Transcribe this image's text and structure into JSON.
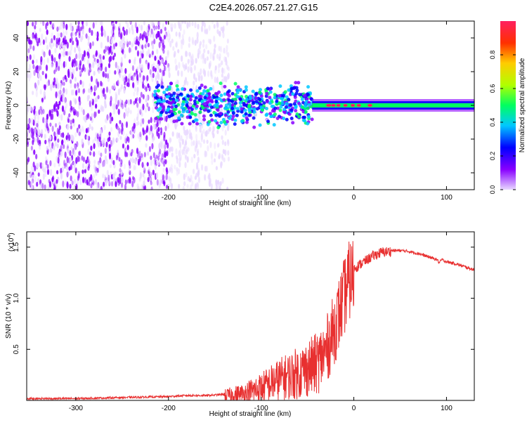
{
  "title": "C2E4.2026.057.21.27.G15",
  "chart_data": [
    {
      "type": "heatmap",
      "name": "spectrogram",
      "xlabel": "Height of straight line (km)",
      "ylabel": "Frequency (Hz)",
      "xlim": [
        -353,
        130
      ],
      "ylim": [
        -50,
        50
      ],
      "x_ticks": [
        -300,
        -200,
        -100,
        0,
        100
      ],
      "x_tick_labels": [
        "-300",
        "-200",
        "-100",
        "0",
        "100"
      ],
      "y_ticks": [
        -40,
        -20,
        0,
        20,
        40
      ],
      "y_tick_labels": [
        "-40",
        "-20",
        "0",
        "20",
        "40"
      ],
      "colorbar": {
        "label": "Normalized spectral amplitude",
        "range": [
          0.0,
          1.0
        ],
        "ticks": [
          0.0,
          0.2,
          0.4,
          0.6,
          0.8
        ],
        "tick_labels": [
          "0.0",
          "0.2",
          "0.4",
          "0.6",
          "0.8"
        ],
        "colors": [
          "#e8d8ff",
          "#8800ff",
          "#0000ff",
          "#00c8ff",
          "#00ff60",
          "#b0ff00",
          "#ffcc00",
          "#ff3000",
          "#ff2060"
        ]
      },
      "regions": [
        {
          "description_key": "noise",
          "x_range": [
            -353,
            -200
          ],
          "freq_range": [
            -50,
            50
          ],
          "amplitude": 0.1
        },
        {
          "description_key": "noise_sparse",
          "x_range": [
            -200,
            -135
          ],
          "freq_range": [
            -50,
            50
          ],
          "amplitude": 0.05
        },
        {
          "description_key": "band",
          "x_range": [
            -215,
            -45
          ],
          "freq_range": [
            -15,
            15
          ],
          "amplitude": 0.25
        },
        {
          "description_key": "signal_line",
          "x_range": [
            -45,
            130
          ],
          "freq_range": [
            -2,
            2
          ],
          "amplitude": 0.6
        }
      ]
    },
    {
      "type": "line",
      "name": "snr",
      "xlabel": "Height of straight line (km)",
      "ylabel": "SNR (10 * v/v)",
      "y_multiplier": "(x10",
      "y_multiplier_exp": "4",
      "y_multiplier_close": ")",
      "xlim": [
        -353,
        130
      ],
      "ylim": [
        0,
        1.65
      ],
      "x_ticks": [
        -300,
        -200,
        -100,
        0,
        100
      ],
      "x_tick_labels": [
        "-300",
        "-200",
        "-100",
        "0",
        "100"
      ],
      "y_ticks": [
        0.5,
        1.0,
        1.5
      ],
      "y_tick_labels": [
        "0.5",
        "1.0",
        "1.5"
      ],
      "color": "#e83030",
      "series": [
        {
          "name": "SNR",
          "x": [
            -353,
            -300,
            -250,
            -200,
            -180,
            -160,
            -140,
            -120,
            -100,
            -80,
            -60,
            -40,
            -30,
            -20,
            -10,
            -5,
            0,
            10,
            20,
            30,
            40,
            50,
            60,
            70,
            80,
            90,
            92,
            95,
            100,
            110,
            120,
            130
          ],
          "y": [
            0.02,
            0.02,
            0.03,
            0.04,
            0.05,
            0.05,
            0.06,
            0.08,
            0.15,
            0.25,
            0.32,
            0.42,
            0.55,
            0.8,
            1.1,
            1.25,
            1.3,
            1.36,
            1.42,
            1.46,
            1.47,
            1.47,
            1.46,
            1.44,
            1.41,
            1.38,
            1.35,
            1.38,
            1.36,
            1.34,
            1.31,
            1.28
          ]
        }
      ]
    }
  ]
}
